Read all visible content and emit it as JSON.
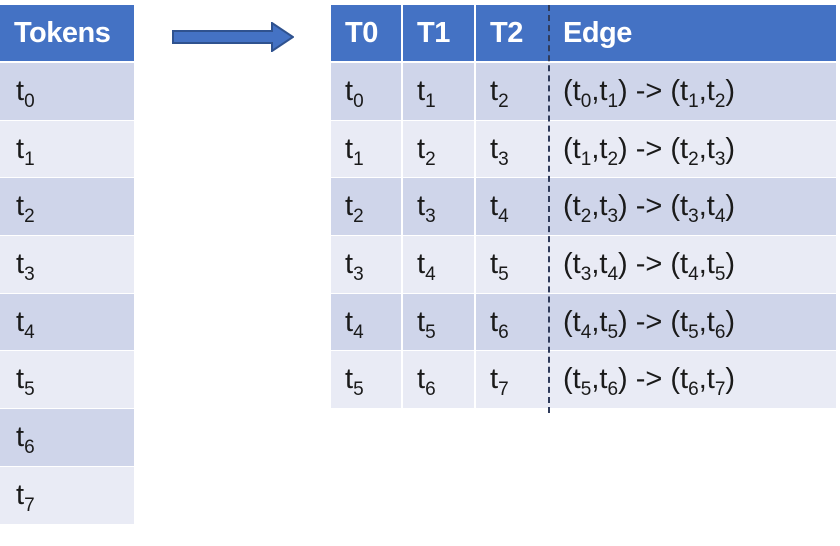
{
  "tokens_table": {
    "header": "Tokens",
    "rows": [
      {
        "base": "t",
        "sub": "0"
      },
      {
        "base": "t",
        "sub": "1"
      },
      {
        "base": "t",
        "sub": "2"
      },
      {
        "base": "t",
        "sub": "3"
      },
      {
        "base": "t",
        "sub": "4"
      },
      {
        "base": "t",
        "sub": "5"
      },
      {
        "base": "t",
        "sub": "6"
      },
      {
        "base": "t",
        "sub": "7"
      }
    ]
  },
  "edge_table": {
    "headers": [
      "T0",
      "T1",
      "T2",
      "Edge"
    ],
    "rows": [
      {
        "t0": "0",
        "t1": "1",
        "t2": "2",
        "edge": [
          "0",
          "1",
          "1",
          "2"
        ]
      },
      {
        "t0": "1",
        "t1": "2",
        "t2": "3",
        "edge": [
          "1",
          "2",
          "2",
          "3"
        ]
      },
      {
        "t0": "2",
        "t1": "3",
        "t2": "4",
        "edge": [
          "2",
          "3",
          "3",
          "4"
        ]
      },
      {
        "t0": "3",
        "t1": "4",
        "t2": "5",
        "edge": [
          "3",
          "4",
          "4",
          "5"
        ]
      },
      {
        "t0": "4",
        "t1": "5",
        "t2": "6",
        "edge": [
          "4",
          "5",
          "5",
          "6"
        ]
      },
      {
        "t0": "5",
        "t1": "6",
        "t2": "7",
        "edge": [
          "5",
          "6",
          "6",
          "7"
        ]
      }
    ]
  },
  "colors": {
    "header_fill": "#4472c4",
    "band_a": "#cfd5ea",
    "band_b": "#e9ebf5",
    "arrow_fill": "#4472c4",
    "arrow_stroke": "#2f528f"
  }
}
